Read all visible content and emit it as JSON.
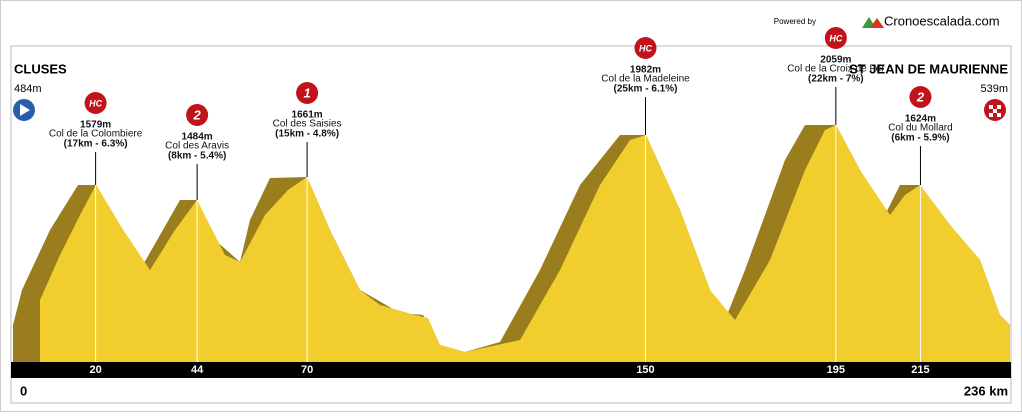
{
  "header": {
    "powered_by": "Powered by",
    "brand": "Cronoescalada.com"
  },
  "start": {
    "name": "CLUSES",
    "altitude": "484m",
    "km": 0
  },
  "finish": {
    "name": "ST JEAN DE MAURIENNE",
    "altitude": "539m",
    "km": {
      "value": 236,
      "label": "236 km"
    }
  },
  "climbs": [
    {
      "category": "HC",
      "altitude": "1579m",
      "name": "Col de la Colombiere",
      "detail": "(17km - 6.3%)",
      "km": 20
    },
    {
      "category": "2",
      "altitude": "1484m",
      "name": "Col des Aravis",
      "detail": "(8km - 5.4%)",
      "km": 44
    },
    {
      "category": "1",
      "altitude": "1661m",
      "name": "Col des Saisies",
      "detail": "(15km - 4.8%)",
      "km": 70
    },
    {
      "category": "HC",
      "altitude": "1982m",
      "name": "Col de la Madeleine",
      "detail": "(25km - 6.1%)",
      "km": 150
    },
    {
      "category": "HC",
      "altitude": "2059m",
      "name": "Col de la Croix de Fer",
      "detail": "(22km - 7%)",
      "km": 195
    },
    {
      "category": "2",
      "altitude": "1624m",
      "name": "Col du Mollard",
      "detail": "(6km - 5.9%)",
      "km": 215
    }
  ]
}
